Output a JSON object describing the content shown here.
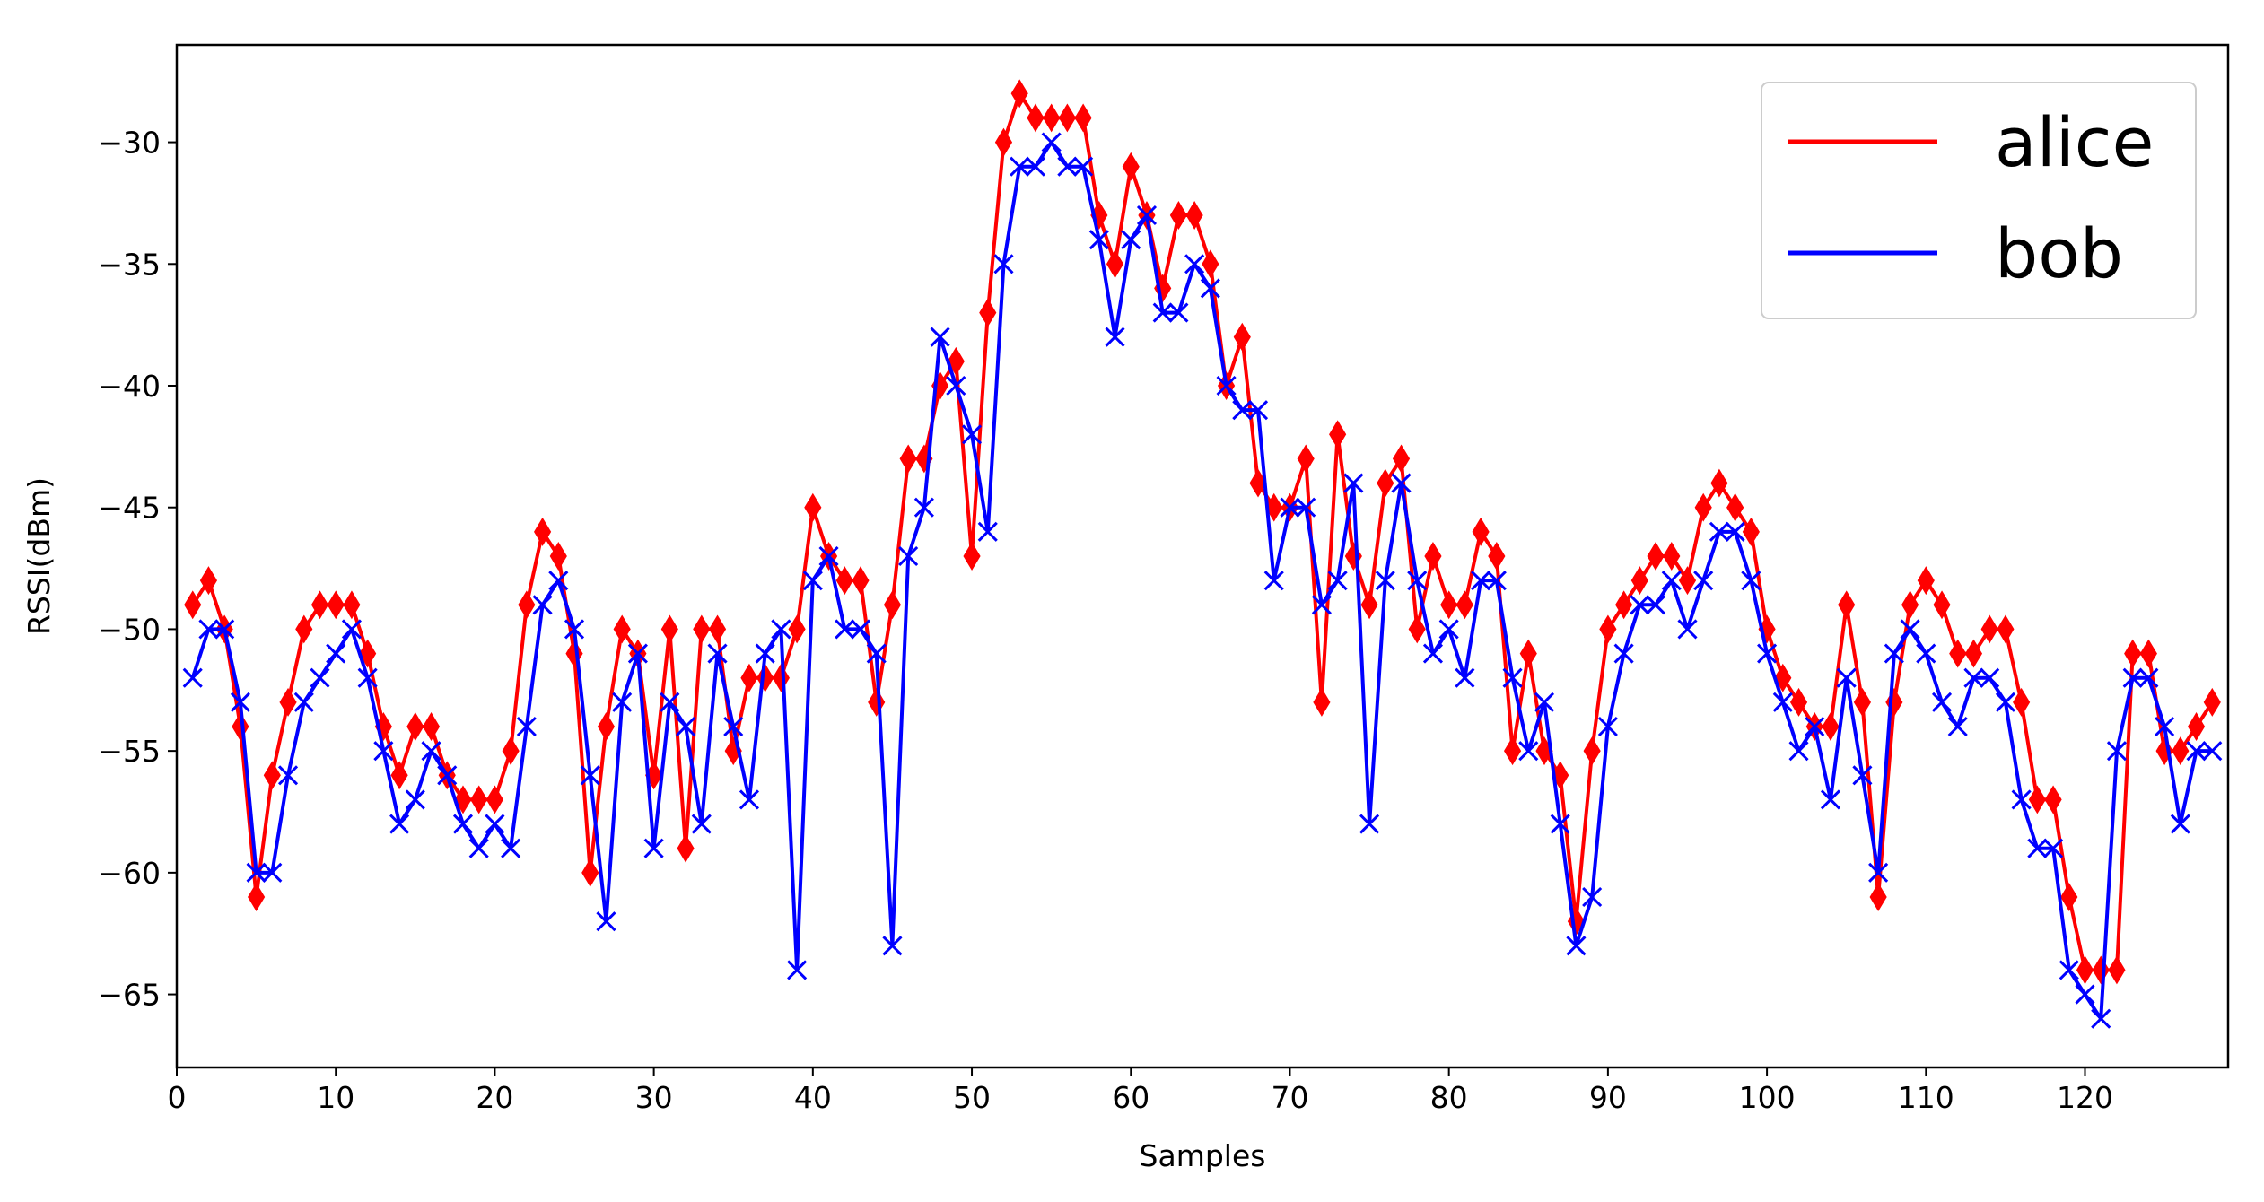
{
  "chart_data": {
    "type": "line",
    "title": "",
    "xlabel": "Samples",
    "ylabel": "RSSI(dBm)",
    "xlim": [
      0,
      129
    ],
    "ylim": [
      -68,
      -26
    ],
    "xticks": [
      0,
      10,
      20,
      30,
      40,
      50,
      60,
      70,
      80,
      90,
      100,
      110,
      120
    ],
    "yticks": [
      -30,
      -35,
      -40,
      -45,
      -50,
      -55,
      -60,
      -65
    ],
    "xtick_labels": [
      "0",
      "10",
      "20",
      "30",
      "40",
      "50",
      "60",
      "70",
      "80",
      "90",
      "100",
      "110",
      "120"
    ],
    "ytick_labels": [
      "−30",
      "−35",
      "−40",
      "−45",
      "−50",
      "−55",
      "−60",
      "−65"
    ],
    "grid": false,
    "legend_position": "top-right",
    "x_start": 1,
    "series": [
      {
        "name": "alice",
        "color": "#ff0000",
        "marker": "diamond",
        "values": [
          -49,
          -48,
          -50,
          -54,
          -61,
          -56,
          -53,
          -50,
          -49,
          -49,
          -49,
          -51,
          -54,
          -56,
          -54,
          -54,
          -56,
          -57,
          -57,
          -57,
          -55,
          -49,
          -46,
          -47,
          -51,
          -60,
          -54,
          -50,
          -51,
          -56,
          -50,
          -59,
          -50,
          -50,
          -55,
          -52,
          -52,
          -52,
          -50,
          -45,
          -47,
          -48,
          -48,
          -53,
          -49,
          -43,
          -43,
          -40,
          -39,
          -47,
          -37,
          -30,
          -28,
          -29,
          -29,
          -29,
          -29,
          -33,
          -35,
          -31,
          -33,
          -36,
          -33,
          -33,
          -35,
          -40,
          -38,
          -44,
          -45,
          -45,
          -43,
          -53,
          -42,
          -47,
          -49,
          -44,
          -43,
          -50,
          -47,
          -49,
          -49,
          -46,
          -47,
          -55,
          -51,
          -55,
          -56,
          -62,
          -55,
          -50,
          -49,
          -48,
          -47,
          -47,
          -48,
          -45,
          -44,
          -45,
          -46,
          -50,
          -52,
          -53,
          -54,
          -54,
          -49,
          -53,
          -61,
          -53,
          -49,
          -48,
          -49,
          -51,
          -51,
          -50,
          -50,
          -53,
          -57,
          -57,
          -61,
          -64,
          -64,
          -64,
          -51,
          -51,
          -55,
          -55,
          -54,
          -53
        ]
      },
      {
        "name": "bob",
        "color": "#0000ff",
        "marker": "x",
        "values": [
          -52,
          -50,
          -50,
          -53,
          -60,
          -60,
          -56,
          -53,
          -52,
          -51,
          -50,
          -52,
          -55,
          -58,
          -57,
          -55,
          -56,
          -58,
          -59,
          -58,
          -59,
          -54,
          -49,
          -48,
          -50,
          -56,
          -62,
          -53,
          -51,
          -59,
          -53,
          -54,
          -58,
          -51,
          -54,
          -57,
          -51,
          -50,
          -64,
          -48,
          -47,
          -50,
          -50,
          -51,
          -63,
          -47,
          -45,
          -38,
          -40,
          -42,
          -46,
          -35,
          -31,
          -31,
          -30,
          -31,
          -31,
          -34,
          -38,
          -34,
          -33,
          -37,
          -37,
          -35,
          -36,
          -40,
          -41,
          -41,
          -48,
          -45,
          -45,
          -49,
          -48,
          -44,
          -58,
          -48,
          -44,
          -48,
          -51,
          -50,
          -52,
          -48,
          -48,
          -52,
          -55,
          -53,
          -58,
          -63,
          -61,
          -54,
          -51,
          -49,
          -49,
          -48,
          -50,
          -48,
          -46,
          -46,
          -48,
          -51,
          -53,
          -55,
          -54,
          -57,
          -52,
          -56,
          -60,
          -51,
          -50,
          -51,
          -53,
          -54,
          -52,
          -52,
          -53,
          -57,
          -59,
          -59,
          -64,
          -65,
          -66,
          -55,
          -52,
          -52,
          -54,
          -58,
          -55,
          -55
        ]
      }
    ]
  }
}
